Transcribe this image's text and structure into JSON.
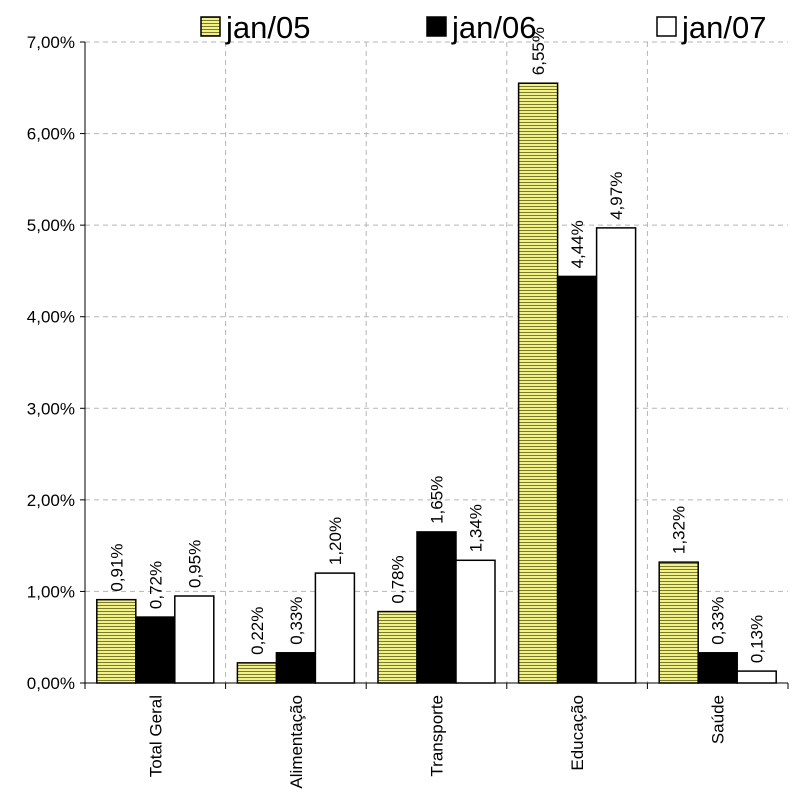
{
  "chart_data": {
    "type": "bar",
    "categories": [
      "Total Geral",
      "Alimentação",
      "Transporte",
      "Educação",
      "Saúde"
    ],
    "series": [
      {
        "name": "jan/05",
        "values": [
          0.91,
          0.22,
          0.78,
          6.55,
          1.32
        ],
        "color": "#f2f28a",
        "stripe": "#5a5a20"
      },
      {
        "name": "jan/06",
        "values": [
          0.72,
          0.33,
          1.65,
          4.44,
          0.33
        ],
        "color": "#000000"
      },
      {
        "name": "jan/07",
        "values": [
          0.95,
          1.2,
          1.34,
          4.97,
          0.13
        ],
        "color": "#ffffff"
      }
    ],
    "data_labels": [
      [
        "0,91%",
        "0,22%",
        "0,78%",
        "6,55%",
        "1,32%"
      ],
      [
        "0,72%",
        "0,33%",
        "1,65%",
        "4,44%",
        "0,33%"
      ],
      [
        "0,95%",
        "1,20%",
        "1,34%",
        "4,97%",
        "0,13%"
      ]
    ],
    "ylim": [
      0,
      7
    ],
    "yticks": [
      0,
      1,
      2,
      3,
      4,
      5,
      6,
      7
    ],
    "ytick_labels": [
      "0,00%",
      "1,00%",
      "2,00%",
      "3,00%",
      "4,00%",
      "5,00%",
      "6,00%",
      "7,00%"
    ],
    "grid": true,
    "legend_position": "top"
  }
}
